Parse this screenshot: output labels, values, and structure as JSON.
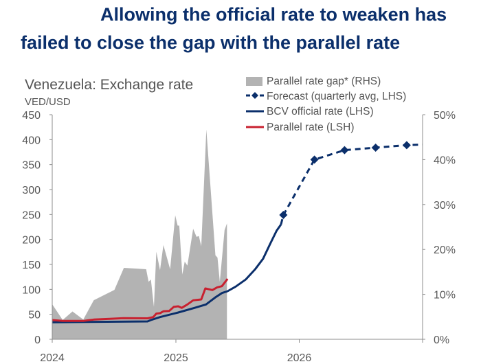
{
  "title_lines": [
    "Allowing the official rate to weaken has",
    "failed to close the gap with the parallel rate"
  ],
  "chart_data": {
    "type": "line",
    "subtitle": "Venezuela: Exchange rate",
    "ylabel": "VED/USD",
    "xlim": [
      "2024-01-01",
      "2027-01-01"
    ],
    "ylim": [
      0,
      450
    ],
    "y2lim": [
      0,
      50
    ],
    "x_ticks": [
      {
        "date": "2024-01-01",
        "label": "2024"
      },
      {
        "date": "2025-01-01",
        "label": "2025"
      },
      {
        "date": "2026-01-01",
        "label": "2026"
      }
    ],
    "y_ticks": [
      "0",
      "50",
      "100",
      "150",
      "200",
      "250",
      "300",
      "350",
      "400",
      "450"
    ],
    "y2_ticks": [
      "0%",
      "10%",
      "20%",
      "30%",
      "40%",
      "50%"
    ],
    "grid": false,
    "legend_position": "top-right",
    "colors": {
      "gap": "#b3b3b3",
      "official": "#0b2f6b",
      "parallel": "#c8202f",
      "forecast": "#0b2f6b"
    },
    "series": [
      {
        "name": "Parallel rate gap* (RHS)",
        "type": "area",
        "axis": "right",
        "unit": "%",
        "points": [
          [
            "2024-01-01",
            7.8
          ],
          [
            "2024-02-01",
            4.3
          ],
          [
            "2024-03-01",
            6.2
          ],
          [
            "2024-04-02",
            4.4
          ],
          [
            "2024-05-03",
            8.7
          ],
          [
            "2024-07-03",
            11.0
          ],
          [
            "2024-07-31",
            15.9
          ],
          [
            "2024-10-05",
            15.6
          ],
          [
            "2024-10-12",
            12.8
          ],
          [
            "2024-10-19",
            13.3
          ],
          [
            "2024-10-28",
            7.2
          ],
          [
            "2024-11-04",
            19.5
          ],
          [
            "2024-11-15",
            15.4
          ],
          [
            "2024-11-25",
            21.0
          ],
          [
            "2024-12-15",
            15.6
          ],
          [
            "2024-12-30",
            27.6
          ],
          [
            "2025-01-06",
            25.3
          ],
          [
            "2025-01-11",
            25.3
          ],
          [
            "2025-01-20",
            14.4
          ],
          [
            "2025-01-27",
            17.3
          ],
          [
            "2025-02-04",
            16.4
          ],
          [
            "2025-02-21",
            24.6
          ],
          [
            "2025-03-03",
            22.8
          ],
          [
            "2025-03-10",
            23.0
          ],
          [
            "2025-03-17",
            20.7
          ],
          [
            "2025-04-01",
            46.7
          ],
          [
            "2025-04-28",
            18.7
          ],
          [
            "2025-05-04",
            18.2
          ],
          [
            "2025-05-11",
            12.8
          ],
          [
            "2025-05-25",
            24.3
          ],
          [
            "2025-06-01",
            25.8
          ]
        ]
      },
      {
        "name": "Forecast (quarterly avg, LHS)",
        "type": "dashed-markers",
        "axis": "left",
        "points": [
          [
            "2025-11-08",
            230
          ],
          [
            "2025-11-15",
            249
          ],
          [
            "2026-02-15",
            360
          ],
          [
            "2026-05-15",
            379
          ],
          [
            "2026-08-15",
            384
          ],
          [
            "2026-11-15",
            389
          ],
          [
            "2026-12-31",
            390
          ]
        ],
        "markers": [
          [
            "2025-11-15",
            249
          ],
          [
            "2026-02-15",
            360
          ],
          [
            "2026-05-15",
            379
          ],
          [
            "2026-08-15",
            384
          ],
          [
            "2026-11-15",
            389
          ]
        ]
      },
      {
        "name": "BCV official rate (LHS)",
        "type": "line",
        "axis": "left",
        "points": [
          [
            "2024-01-01",
            34
          ],
          [
            "2024-04-13",
            34.8
          ],
          [
            "2024-10-09",
            35.8
          ],
          [
            "2024-10-19",
            38.5
          ],
          [
            "2024-11-15",
            44.5
          ],
          [
            "2025-01-08",
            53.7
          ],
          [
            "2025-02-25",
            62.9
          ],
          [
            "2025-03-31",
            69.8
          ],
          [
            "2025-04-27",
            83.5
          ],
          [
            "2025-05-17",
            92.6
          ],
          [
            "2025-06-03",
            96.3
          ],
          [
            "2025-06-27",
            105.5
          ],
          [
            "2025-07-27",
            120
          ],
          [
            "2025-08-24",
            140.8
          ],
          [
            "2025-09-16",
            161.4
          ],
          [
            "2025-10-07",
            191.3
          ],
          [
            "2025-10-26",
            217.4
          ],
          [
            "2025-11-08",
            230
          ]
        ]
      },
      {
        "name": "Parallel rate (LSH)",
        "type": "line",
        "axis": "left",
        "points": [
          [
            "2024-01-01",
            38.5
          ],
          [
            "2024-02-01",
            36.7
          ],
          [
            "2024-04-02",
            36.7
          ],
          [
            "2024-05-03",
            39.5
          ],
          [
            "2024-06-19",
            40.9
          ],
          [
            "2024-07-30",
            42.2
          ],
          [
            "2024-10-09",
            42
          ],
          [
            "2024-10-26",
            44.5
          ],
          [
            "2024-11-04",
            51.4
          ],
          [
            "2024-11-15",
            52.3
          ],
          [
            "2024-11-25",
            56
          ],
          [
            "2024-12-12",
            56.8
          ],
          [
            "2024-12-26",
            65
          ],
          [
            "2025-01-08",
            66
          ],
          [
            "2025-01-18",
            62.9
          ],
          [
            "2025-02-04",
            69.8
          ],
          [
            "2025-02-21",
            78
          ],
          [
            "2025-03-17",
            79.8
          ],
          [
            "2025-03-29",
            101.8
          ],
          [
            "2025-04-19",
            98.7
          ],
          [
            "2025-05-03",
            104
          ],
          [
            "2025-05-17",
            106.4
          ],
          [
            "2025-06-03",
            121
          ]
        ]
      }
    ]
  }
}
